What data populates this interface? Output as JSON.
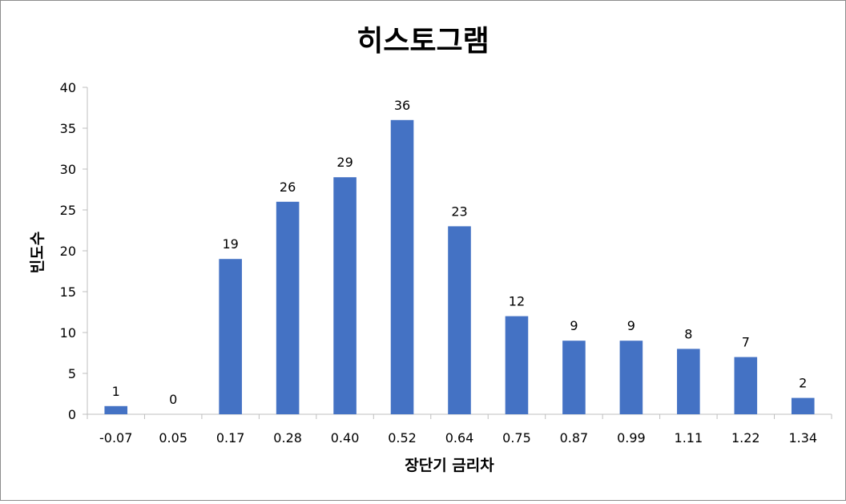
{
  "chart_data": {
    "type": "bar",
    "title": "히스토그램",
    "xlabel": "장단기 금리차",
    "ylabel": "빈도수",
    "categories": [
      "-0.07",
      "0.05",
      "0.17",
      "0.28",
      "0.40",
      "0.52",
      "0.64",
      "0.75",
      "0.87",
      "0.99",
      "1.11",
      "1.22",
      "1.34"
    ],
    "series": [
      {
        "values": [
          1,
          0,
          19,
          26,
          29,
          36,
          23,
          12,
          9,
          9,
          8,
          7,
          2
        ]
      }
    ],
    "ylim": [
      0,
      40
    ],
    "yticks": [
      0,
      5,
      10,
      15,
      20,
      25,
      30,
      35,
      40
    ],
    "data_labels": true,
    "grid": false,
    "legend": "none",
    "colors": {
      "bar": "#4472C4",
      "axis": "#BFBFBF",
      "border": "#8C8C8C"
    }
  }
}
